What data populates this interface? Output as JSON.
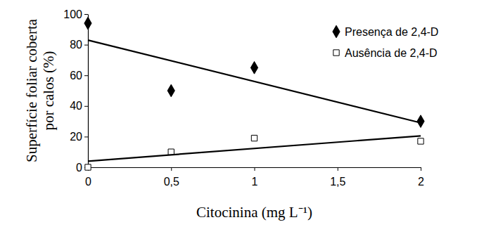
{
  "chart_data": {
    "type": "scatter",
    "x_label": "Citocinina (mg L⁻¹)",
    "y_label": [
      "Superfície foliar coberta",
      "por calos (%)"
    ],
    "x": [
      0,
      0.5,
      1,
      2
    ],
    "series": [
      {
        "name": "Presença de 2,4-D",
        "color": "#000000",
        "marker": "diamond",
        "values": [
          94,
          50,
          65,
          30
        ]
      },
      {
        "name": "Ausência de 2,4-D",
        "color": "#000000",
        "marker": "square",
        "values": [
          0,
          10,
          19,
          17
        ]
      },
      {
        "type": "line",
        "color": "#000000",
        "line_style": "solid",
        "x": [
          0,
          2
        ],
        "values": [
          83,
          29
        ]
      },
      {
        "type": "line",
        "color": "#000000",
        "line_style": "solid",
        "x": [
          0,
          2
        ],
        "values": [
          4,
          20.5
        ]
      }
    ],
    "xlim": [
      0,
      2
    ],
    "xticks": [
      0,
      {
        "value": 0.5,
        "label": "0,5"
      },
      1,
      {
        "value": 1.5,
        "label": "1,5"
      },
      2
    ],
    "ylim": [
      0,
      100
    ],
    "yticks": [
      0,
      20,
      40,
      60,
      80,
      100
    ],
    "grid": false,
    "legend": "top-right"
  }
}
